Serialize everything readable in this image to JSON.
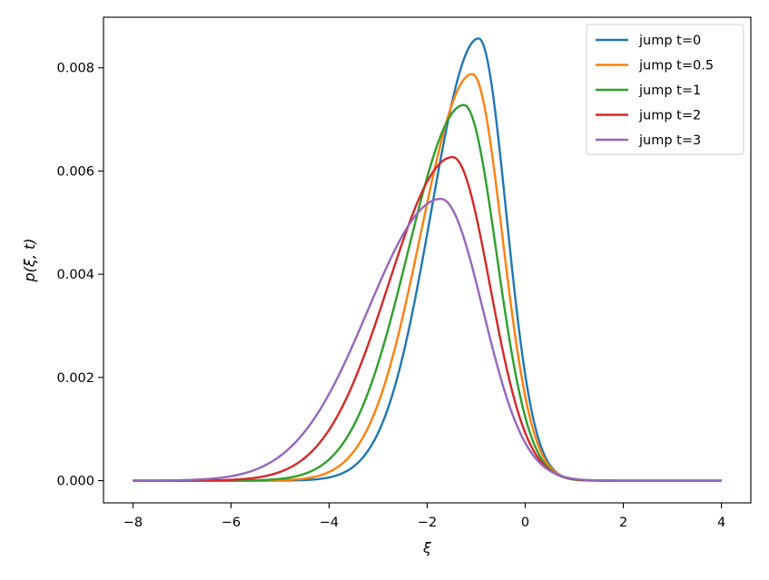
{
  "chart_data": {
    "type": "line",
    "title": "",
    "xlabel": "ξ",
    "ylabel": "p(ξ, t)",
    "xlim": [
      -8.6,
      4.6
    ],
    "ylim": [
      -0.00043,
      0.00898
    ],
    "xticks": [
      -8,
      -6,
      -4,
      -2,
      0,
      2,
      4
    ],
    "xtick_labels": [
      "−8",
      "−6",
      "−4",
      "−2",
      "0",
      "2",
      "4"
    ],
    "yticks": [
      0.0,
      0.002,
      0.004,
      0.006,
      0.008
    ],
    "ytick_labels": [
      "0.000",
      "0.002",
      "0.004",
      "0.006",
      "0.008"
    ],
    "grid": false,
    "legend_position": "top-right",
    "x_range": [
      -8,
      4
    ],
    "series": [
      {
        "name": "jump t=0",
        "color": "#1f77b4",
        "peak_x": -0.95,
        "peak_y": 0.00857,
        "width": 0.72
      },
      {
        "name": "jump t=0.5",
        "color": "#ff7f0e",
        "peak_x": -1.08,
        "peak_y": 0.00788,
        "width": 0.78
      },
      {
        "name": "jump t=1",
        "color": "#2ca02c",
        "peak_x": -1.25,
        "peak_y": 0.00728,
        "width": 0.85
      },
      {
        "name": "jump t=2",
        "color": "#d62728",
        "peak_x": -1.48,
        "peak_y": 0.00627,
        "width": 0.97
      },
      {
        "name": "jump t=3",
        "color": "#9467bd",
        "peak_x": -1.72,
        "peak_y": 0.00546,
        "width": 1.1
      }
    ]
  }
}
